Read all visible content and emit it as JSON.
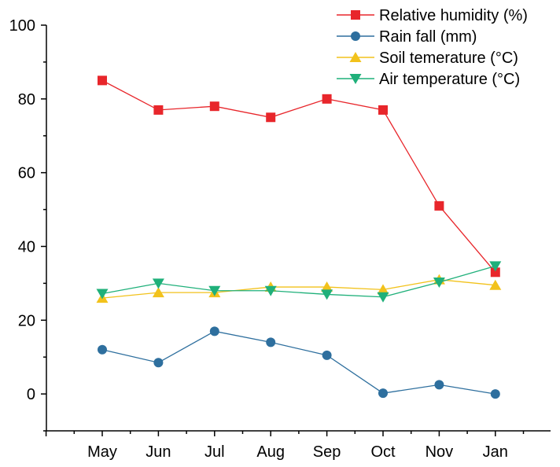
{
  "chart_data": {
    "type": "line",
    "title": "",
    "xlabel": "",
    "ylabel": "",
    "categories": [
      "May",
      "Jun",
      "Jul",
      "Aug",
      "Sep",
      "Oct",
      "Nov",
      "Jan"
    ],
    "ylim": [
      -10,
      100
    ],
    "yticks": [
      0,
      20,
      40,
      60,
      80,
      100
    ],
    "legend_position": "top-right",
    "grid": false,
    "series": [
      {
        "name": "Relative humidity (%)",
        "color": "#e8262b",
        "marker": "square",
        "values": [
          85,
          77,
          78,
          75,
          80,
          77,
          51,
          33
        ]
      },
      {
        "name": "Rain fall (mm)",
        "color": "#2e6f9e",
        "marker": "circle",
        "values": [
          12,
          8.5,
          17,
          14,
          10.5,
          0.2,
          2.5,
          0
        ]
      },
      {
        "name": "Soil temerature (°C)",
        "color": "#f2c21b",
        "marker": "triangle-up",
        "values": [
          26,
          27.5,
          27.5,
          29,
          29,
          28.3,
          31,
          29.5
        ]
      },
      {
        "name": "Air temperature (°C)",
        "color": "#1fb07a",
        "marker": "triangle-down",
        "values": [
          27.2,
          30,
          28,
          28,
          27,
          26.3,
          30.3,
          34.7
        ]
      }
    ]
  }
}
